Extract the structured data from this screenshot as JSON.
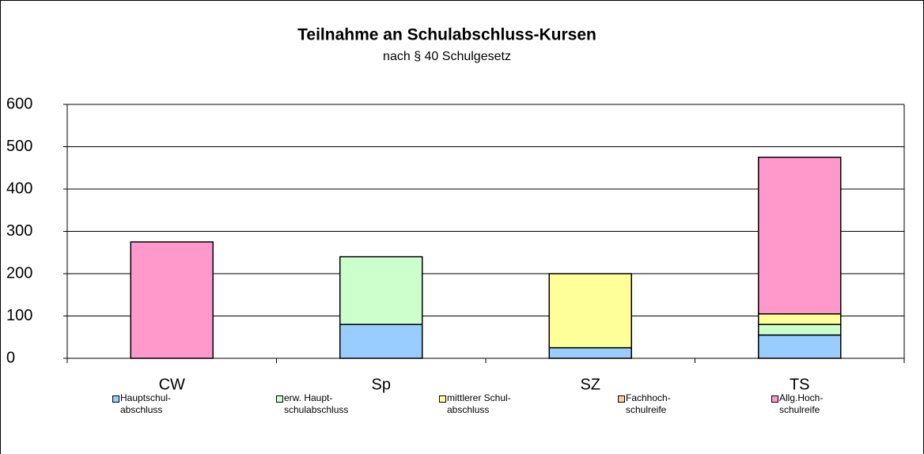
{
  "chart_data": {
    "type": "stacked_bar",
    "title": "Teilnahme an Schulabschluss-Kursen",
    "subtitle": "nach § 40 Schulgesetz",
    "categories": [
      "CW",
      "Sp",
      "SZ",
      "TS"
    ],
    "series": [
      {
        "name": "Hauptschul-\nabschluss",
        "color": "#99ccff",
        "values": [
          0,
          80,
          25,
          55
        ]
      },
      {
        "name": "erw. Haupt-\nschulabschluss",
        "color": "#ccffcc",
        "values": [
          0,
          160,
          0,
          25
        ]
      },
      {
        "name": "mittlerer Schul-\nabschluss",
        "color": "#ffff99",
        "values": [
          0,
          0,
          175,
          25
        ]
      },
      {
        "name": "Fachhoch-\nschulreife",
        "color": "#ffcc99",
        "values": [
          0,
          0,
          0,
          0
        ]
      },
      {
        "name": "Allg.Hoch-\nschulreife",
        "color": "#ff99cc",
        "values": [
          275,
          0,
          0,
          370
        ]
      }
    ],
    "ylim": [
      0,
      600
    ],
    "yticks": [
      0,
      100,
      200,
      300,
      400,
      500,
      600
    ],
    "grid": true,
    "legend": "bottom"
  }
}
